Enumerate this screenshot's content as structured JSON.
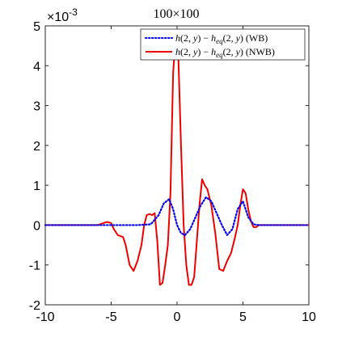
{
  "chart_data": {
    "type": "line",
    "title": "100×100",
    "xlabel": "",
    "ylabel": "",
    "xlim": [
      -10,
      10
    ],
    "ylim": [
      -0.002,
      0.005
    ],
    "y_exponent_label": "×10",
    "y_exponent_power": "-3",
    "x_ticks": [
      -10,
      -5,
      0,
      5,
      10
    ],
    "x_tick_labels": [
      "-10",
      "-5",
      "0",
      "5",
      "10"
    ],
    "y_ticks": [
      -0.002,
      -0.001,
      0,
      0.001,
      0.002,
      0.003,
      0.004,
      0.005
    ],
    "y_tick_labels": [
      "-2",
      "-1",
      "0",
      "1",
      "2",
      "3",
      "4",
      "5"
    ],
    "grid": false,
    "legend_position": "top-right",
    "series": [
      {
        "name": "h(2, y) − h_eq(2, y) (WB)",
        "legend": {
          "a": "h",
          "b": "(2, ",
          "c": "y",
          "d": ") − ",
          "e": "h",
          "f": "eq",
          "g": "(2, ",
          "h": "y",
          "i": ") (WB)"
        },
        "color": "#0000ee",
        "style": "dotted",
        "x": [
          -10,
          -5.4,
          -3,
          -2,
          -1.4,
          -1.0,
          -0.6,
          -0.3,
          0,
          0.3,
          0.6,
          1.0,
          1.4,
          1.8,
          2.2,
          2.6,
          3.0,
          3.4,
          3.8,
          4.2,
          4.6,
          5.0,
          5.4,
          5.8,
          6.2,
          10
        ],
        "y": [
          0,
          0,
          0,
          2e-05,
          0.00025,
          0.00055,
          0.00065,
          0.0004,
          0.0,
          -0.0002,
          -0.00025,
          -0.0001,
          0.0002,
          0.0005,
          0.0007,
          0.0006,
          0.0003,
          0.0,
          -0.00025,
          -0.0001,
          0.0004,
          0.0006,
          0.0002,
          2e-05,
          0,
          0
        ]
      },
      {
        "name": "h(2, y) − h_eq(2, y) (NWB)",
        "legend": {
          "a": "h",
          "b": "(2, ",
          "c": "y",
          "d": ") − ",
          "e": "h",
          "f": "eq",
          "g": "(2, ",
          "h": "y",
          "i": ") (NWB)"
        },
        "color": "#ee0000",
        "style": "solid",
        "x": [
          -10,
          -6.0,
          -5.6,
          -5.3,
          -5.0,
          -4.8,
          -4.5,
          -4.1,
          -3.9,
          -3.6,
          -3.3,
          -3.0,
          -2.7,
          -2.5,
          -2.3,
          -2.1,
          -1.9,
          -1.7,
          -1.5,
          -1.3,
          -1.1,
          -0.9,
          -0.7,
          -0.5,
          -0.3,
          -0.1,
          0.1,
          0.3,
          0.5,
          0.7,
          0.9,
          1.1,
          1.3,
          1.5,
          1.7,
          1.9,
          2.1,
          2.3,
          2.6,
          2.9,
          3.2,
          3.5,
          3.8,
          4.1,
          4.4,
          4.6,
          4.8,
          5.0,
          5.2,
          5.4,
          5.6,
          5.8,
          6.0,
          6.2,
          6.5,
          10
        ],
        "y": [
          0,
          0,
          5e-05,
          8e-05,
          5e-05,
          -0.0001,
          -0.00025,
          -0.0003,
          -0.0005,
          -0.001,
          -0.00115,
          -0.0009,
          -0.0005,
          0.0,
          0.00025,
          0.00028,
          0.00025,
          0.0003,
          -0.0004,
          -0.0015,
          -0.00145,
          -0.001,
          -0.0005,
          0.0008,
          0.0038,
          0.0048,
          0.0042,
          0.002,
          0.0,
          -0.001,
          -0.0015,
          -0.0015,
          -0.0013,
          -0.0004,
          0.0005,
          0.00115,
          0.001,
          0.0009,
          0.0005,
          -0.0002,
          -0.0011,
          -0.00115,
          -0.0009,
          -0.0007,
          -0.0003,
          0.0,
          0.0005,
          0.0009,
          0.0008,
          0.0004,
          0.0001,
          -5e-05,
          -5e-05,
          0,
          0,
          0
        ]
      }
    ]
  }
}
